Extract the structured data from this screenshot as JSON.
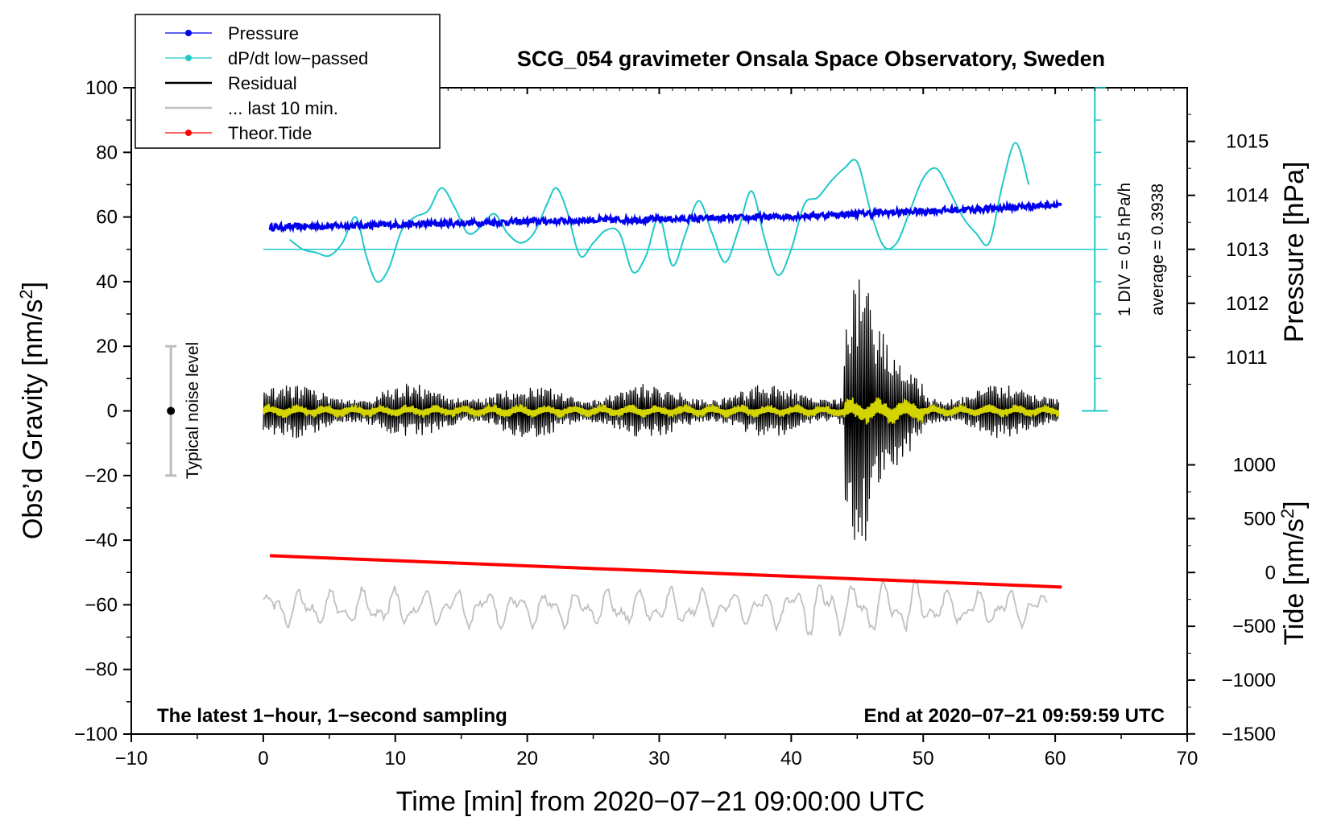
{
  "chart_data": {
    "type": "line",
    "title": "SCG_054 gravimeter Onsala Space Observatory, Sweden",
    "xlabel": "Time [min] from 2020−07−21 09:00:00 UTC",
    "ylabel_left": "Obs’d Gravity [nm/s²]",
    "ylabel_left_main": "Obs’d Gravity [nm/s",
    "ylabel_left_sup": "2",
    "ylabel_left_end": "]",
    "ylabel_right_pressure": "Pressure [hPa]",
    "ylabel_right_tide_main": "Tide [nm/s",
    "ylabel_right_tide_sup": "2",
    "ylabel_right_tide_end": "]",
    "xlim": [
      -10,
      70
    ],
    "ylim": [
      -100,
      100
    ],
    "xticks": [
      -10,
      0,
      10,
      20,
      30,
      40,
      50,
      60,
      70
    ],
    "xtick_labels": [
      "−10",
      "0",
      "10",
      "20",
      "30",
      "40",
      "50",
      "60",
      "70"
    ],
    "yticks": [
      -100,
      -80,
      -60,
      -40,
      -20,
      0,
      20,
      40,
      60,
      80,
      100
    ],
    "ytick_labels": [
      "−100",
      "−80",
      "−60",
      "−40",
      "−20",
      "0",
      "20",
      "40",
      "60",
      "80",
      "100"
    ],
    "pressure_axis": {
      "ticks": [
        1011,
        1012,
        1013,
        1014,
        1015
      ],
      "labels": [
        "1011",
        "1012",
        "1013",
        "1014",
        "1015"
      ],
      "gravity_at_1013": 50,
      "gravity_per_hpa": 16.7
    },
    "tide_axis": {
      "ticks": [
        -1500,
        -1000,
        -500,
        0,
        500,
        1000
      ],
      "labels": [
        "−1500",
        "−1000",
        "−500",
        "0",
        "500",
        "1000"
      ],
      "gravity_at_zero": -50,
      "gravity_per_unit": 0.0333
    },
    "legend": [
      {
        "label": "Pressure",
        "color": "#0000ee",
        "marker": true
      },
      {
        "label": "dP/dt low−passed",
        "color": "#20c8c8",
        "marker": true
      },
      {
        "label": "Residual",
        "color": "#000000",
        "marker": false
      },
      {
        "label": "... last 10 min.",
        "color": "#c0c0c0",
        "marker": false
      },
      {
        "label": "Theor.Tide",
        "color": "#ff0000",
        "marker": true
      }
    ],
    "annotations": {
      "noise_level": "Typical noise level",
      "noise_x": -7,
      "noise_range": [
        -20,
        20
      ],
      "scale_label": "1 DIV = 0.5 hPa/h",
      "average_label": "average = 0.3938",
      "scale_x": 63,
      "scale_range": [
        0,
        100
      ],
      "scale_baseline": 50,
      "bottom_left": "The latest 1−hour, 1−second sampling",
      "bottom_right": "End at 2020−07−21 09:59:59 UTC"
    },
    "series": [
      {
        "name": "Pressure",
        "color": "#0000ee",
        "x": [
          0.5,
          5,
          10,
          15,
          20,
          25,
          30,
          35,
          40,
          45,
          50,
          55,
          60.5
        ],
        "y": [
          56.8,
          57.2,
          57.6,
          58.1,
          58.6,
          59.0,
          59.3,
          59.6,
          60.2,
          61.0,
          61.8,
          62.6,
          64.0
        ]
      },
      {
        "name": "dP/dt low−passed",
        "color": "#20c8c8",
        "x": [
          2,
          3,
          4,
          5,
          6,
          7,
          7.8,
          8.6,
          9.5,
          10.5,
          11.5,
          12.5,
          13.5,
          14.5,
          15.5,
          16.5,
          17.5,
          18.5,
          19.5,
          20.5,
          21.5,
          22.2,
          23,
          24,
          25,
          26,
          27,
          28,
          29,
          30,
          31,
          32,
          33,
          34,
          35,
          36,
          37,
          38,
          39,
          40,
          41,
          42,
          43,
          44,
          45,
          46,
          47,
          48,
          49,
          50,
          51,
          52,
          53,
          54,
          55,
          56,
          57,
          58
        ],
        "y": [
          53,
          50,
          49,
          48,
          52,
          60,
          48,
          40,
          44,
          56,
          60,
          62,
          69,
          63,
          55,
          57,
          61,
          55,
          52,
          55,
          64,
          69,
          62,
          48,
          52,
          56,
          55,
          43,
          48,
          60,
          45,
          55,
          65,
          55,
          46,
          56,
          68,
          53,
          42,
          50,
          64,
          66,
          71,
          75,
          77,
          62,
          51,
          52,
          62,
          72,
          75,
          68,
          60,
          55,
          52,
          70,
          83,
          70
        ]
      },
      {
        "name": "Theor.Tide",
        "color": "#ff0000",
        "x": [
          0.5,
          60.5
        ],
        "y": [
          -44.8,
          -54.5
        ]
      }
    ],
    "residual": {
      "x_start": 0,
      "x_end": 60,
      "burst_start": 44,
      "burst_end": 50,
      "burst_peak_x": 45,
      "peak_max": 34,
      "peak_min": -35
    }
  }
}
